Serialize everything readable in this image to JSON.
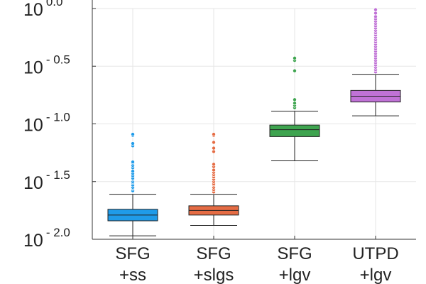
{
  "chart_data": {
    "type": "box",
    "yscale": "log10",
    "ylim_exp": [
      -2.0,
      0.0
    ],
    "grid": true,
    "legend": "none",
    "title": "",
    "xlabel": "",
    "ylabel": "",
    "y_ticks": [
      {
        "base": "10",
        "exp": "- 2.0",
        "value_exp": -2.0
      },
      {
        "base": "10",
        "exp": "- 1.5",
        "value_exp": -1.5
      },
      {
        "base": "10",
        "exp": "- 1.0",
        "value_exp": -1.0
      },
      {
        "base": "10",
        "exp": "- 0.5",
        "value_exp": -0.5
      },
      {
        "base": "10",
        "exp": "0.0",
        "value_exp": 0.0
      }
    ],
    "categories": [
      {
        "line1": "SFG",
        "line2": "+ss"
      },
      {
        "line1": "SFG",
        "line2": "+slgs"
      },
      {
        "line1": "SFG",
        "line2": "+lgv"
      },
      {
        "line1": "UTPD",
        "line2": "+lgv"
      }
    ],
    "series": [
      {
        "name": "SFG +ss",
        "color": "#1f9be9",
        "whisker_low": -1.97,
        "q1": -1.84,
        "median": -1.79,
        "q3": -1.74,
        "whisker_high": -1.61,
        "outliers": [
          -1.58,
          -1.56,
          -1.55,
          -1.53,
          -1.51,
          -1.5,
          -1.48,
          -1.47,
          -1.45,
          -1.43,
          -1.41,
          -1.38,
          -1.36,
          -1.34,
          -1.33,
          -1.19,
          -1.17,
          -1.1,
          -1.09
        ]
      },
      {
        "name": "SFG +slgs",
        "color": "#e56c44",
        "whisker_low": -1.88,
        "q1": -1.79,
        "median": -1.75,
        "q3": -1.71,
        "whisker_high": -1.61,
        "outliers": [
          -1.59,
          -1.57,
          -1.55,
          -1.53,
          -1.52,
          -1.5,
          -1.48,
          -1.46,
          -1.44,
          -1.42,
          -1.4,
          -1.37,
          -1.35,
          -1.24,
          -1.21,
          -1.16,
          -1.1,
          -1.09
        ]
      },
      {
        "name": "SFG +lgv",
        "color": "#3ea44f",
        "whisker_low": -1.32,
        "q1": -1.11,
        "median": -1.05,
        "q3": -1.01,
        "whisker_high": -0.89,
        "outliers": [
          -0.86,
          -0.84,
          -0.82,
          -0.79,
          -0.54,
          -0.45,
          -0.43
        ]
      },
      {
        "name": "UTPD +lgv",
        "color": "#c072d6",
        "whisker_low": -0.93,
        "q1": -0.81,
        "median": -0.76,
        "q3": -0.71,
        "whisker_high": -0.57,
        "outliers": [
          -0.55,
          -0.53,
          -0.51,
          -0.49,
          -0.47,
          -0.45,
          -0.43,
          -0.41,
          -0.39,
          -0.37,
          -0.35,
          -0.33,
          -0.31,
          -0.29,
          -0.27,
          -0.25,
          -0.23,
          -0.21,
          -0.19,
          -0.17,
          -0.15,
          -0.13,
          -0.11,
          -0.09,
          -0.07,
          -0.04,
          -0.01
        ]
      }
    ]
  }
}
